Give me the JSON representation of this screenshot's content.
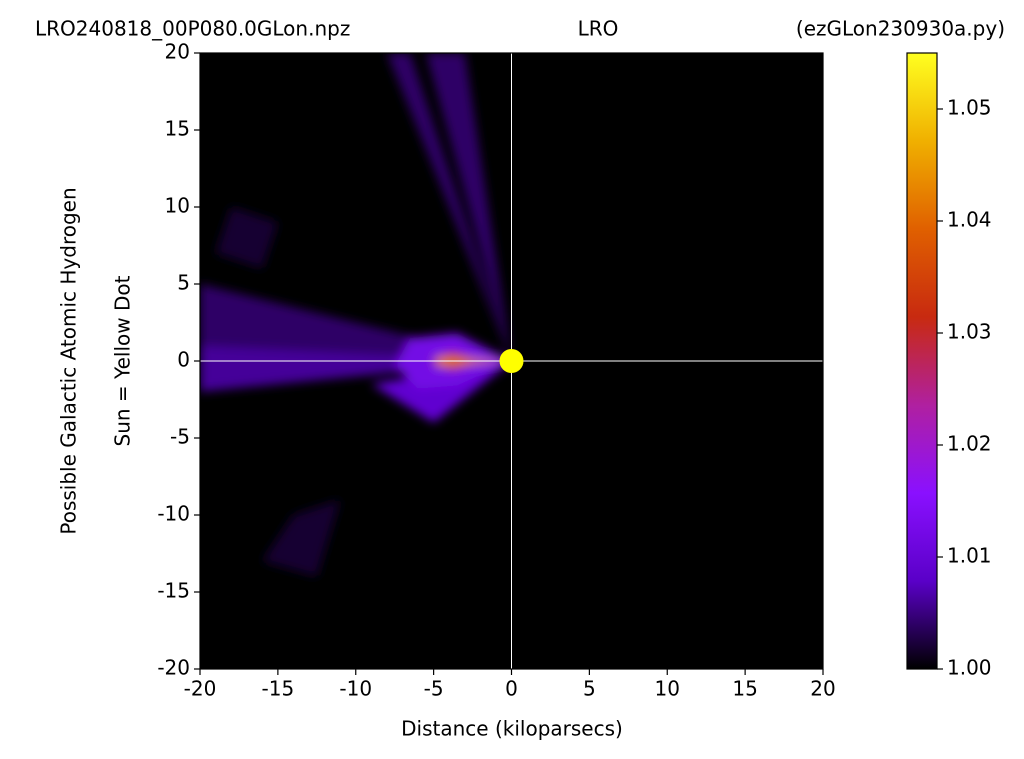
{
  "chart_data": {
    "type": "heatmap",
    "title": [
      "LRO240818_00P080.0GLon.npz",
      "LRO",
      "(ezGLon230930a.py)"
    ],
    "xlabel": "Distance (kiloparsecs)",
    "ylabel": [
      "Possible Galactic Atomic Hydrogen",
      "Sun = Yellow Dot"
    ],
    "xlim": [
      -20,
      20
    ],
    "ylim": [
      -20,
      20
    ],
    "xticks": [
      -20,
      -15,
      -10,
      -5,
      0,
      5,
      10,
      15,
      20
    ],
    "yticks": [
      -20,
      -15,
      -10,
      -5,
      0,
      5,
      10,
      15,
      20
    ],
    "clim": [
      1.0,
      1.055
    ],
    "cticks": [
      {
        "value": 1.0,
        "label": "1.00"
      },
      1.01,
      1.02,
      1.03,
      1.04,
      1.05
    ],
    "colormap": [
      "#000000",
      "#5a00c8",
      "#8a10ff",
      "#b020a0",
      "#c82a10",
      "#e06000",
      "#f0b000",
      "#ffff20"
    ],
    "background": "#000000",
    "crosshair": true,
    "sun": {
      "x": 0,
      "y": 0,
      "color": "#ffff00"
    },
    "regions": [
      {
        "x": [
          0,
          -8,
          -6.5
        ],
        "y": [
          0,
          20,
          20
        ],
        "value": 1.004
      },
      {
        "x": [
          0,
          -5.5,
          -3
        ],
        "y": [
          0,
          20,
          20
        ],
        "value": 1.004
      },
      {
        "x": [
          0,
          -20,
          -20
        ],
        "y": [
          0,
          5,
          1
        ],
        "value": 1.004
      },
      {
        "x": [
          0,
          -20,
          -20
        ],
        "y": [
          0,
          1,
          -2
        ],
        "value": 1.006
      },
      {
        "x": [
          0,
          -9,
          -5
        ],
        "y": [
          0,
          -1.5,
          -4
        ],
        "value": 1.009
      },
      {
        "x": [
          0,
          -3.5,
          -6.5,
          -7.5,
          -6,
          -3.5
        ],
        "y": [
          0,
          1.8,
          1.5,
          -0.3,
          -1.8,
          -1.6
        ],
        "value": 1.012
      },
      {
        "x": [
          -2,
          -3.8,
          -5.2,
          -3.8
        ],
        "y": [
          0,
          0.6,
          0,
          -0.6
        ],
        "value": 1.03
      },
      {
        "x": [
          0,
          -4.8,
          -4.8
        ],
        "y": [
          0,
          0.3,
          -0.35
        ],
        "value": 1.042
      },
      {
        "x": [
          -14,
          -11,
          -12.5,
          -16
        ],
        "y": [
          -10,
          -9,
          -14,
          -13
        ],
        "value": 1.002
      },
      {
        "x": [
          -18,
          -15,
          -16,
          -19
        ],
        "y": [
          10,
          9,
          6,
          7
        ],
        "value": 1.002
      }
    ]
  }
}
